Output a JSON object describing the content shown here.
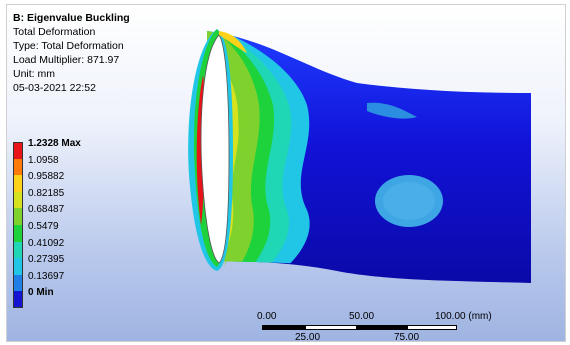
{
  "info": {
    "title": "B: Eigenvalue Buckling",
    "result": "Total Deformation",
    "type": "Type: Total Deformation",
    "load_multiplier": "Load Multiplier: 871.97",
    "unit": "Unit: mm",
    "timestamp": "05-03-2021 22:52"
  },
  "legend": [
    {
      "label": "1.2328 Max",
      "color": "#e8141a",
      "bold": true
    },
    {
      "label": "1.0958",
      "color": "#ff7a0a",
      "bold": false
    },
    {
      "label": "0.95882",
      "color": "#ffd21a",
      "bold": false
    },
    {
      "label": "0.82185",
      "color": "#d6e21e",
      "bold": false
    },
    {
      "label": "0.68487",
      "color": "#7fd12d",
      "bold": false
    },
    {
      "label": "0.5479",
      "color": "#1ed23c",
      "bold": false
    },
    {
      "label": "0.41092",
      "color": "#1fd7b4",
      "bold": false
    },
    {
      "label": "0.27395",
      "color": "#21c6e6",
      "bold": false
    },
    {
      "label": "0.13697",
      "color": "#1e7fe6",
      "bold": false
    },
    {
      "label": "0 Min",
      "color": "#1414d2",
      "bold": true
    }
  ],
  "scale_bar": {
    "top_labels": [
      "0.00",
      "50.00",
      "100.00 (mm)"
    ],
    "bottom_labels": [
      "25.00",
      "75.00"
    ]
  }
}
